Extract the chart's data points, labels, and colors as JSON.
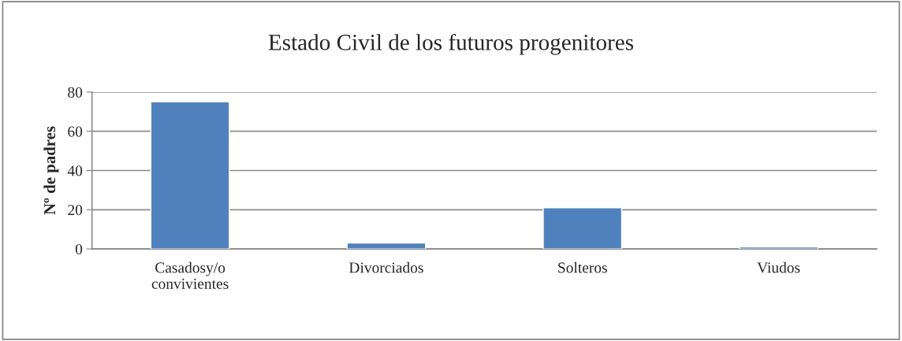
{
  "chart_data": {
    "type": "bar",
    "title": "Estado Civil de los futuros progenitores",
    "ylabel": "Nº de padres",
    "categories": [
      "Casadosy/o\nconvivientes",
      "Divorciados",
      "Solteros",
      "Viudos"
    ],
    "values": [
      75,
      3,
      21,
      1
    ],
    "color": "#4f81bd",
    "ylim": [
      0,
      80
    ],
    "yticks": [
      0,
      20,
      40,
      60,
      80
    ],
    "grid": "y",
    "legend": false
  }
}
